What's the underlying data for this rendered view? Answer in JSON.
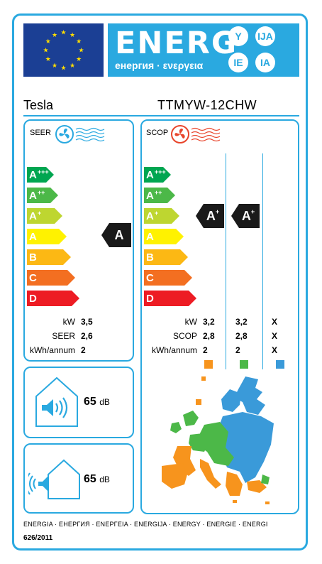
{
  "header": {
    "energy_word": "ENERG",
    "energy_sub": "енергия · ενεργεια",
    "lang_badges": [
      "Y",
      "IJA",
      "IE",
      "IA"
    ]
  },
  "product": {
    "brand": "Tesla",
    "model": "TTMYW-12CHW"
  },
  "scale": [
    {
      "grade": "A",
      "sup": "+++",
      "color": "#00a651"
    },
    {
      "grade": "A",
      "sup": "++",
      "color": "#4cb848"
    },
    {
      "grade": "A",
      "sup": "+",
      "color": "#bed630"
    },
    {
      "grade": "A",
      "sup": "",
      "color": "#fff200"
    },
    {
      "grade": "B",
      "sup": "",
      "color": "#fcb814"
    },
    {
      "grade": "C",
      "sup": "",
      "color": "#f36f21"
    },
    {
      "grade": "D",
      "sup": "",
      "color": "#ed1c24"
    }
  ],
  "cooling": {
    "label": "SEER",
    "class_grade": "A",
    "class_sup": "",
    "rows": [
      {
        "label": "kW",
        "value": "3,5"
      },
      {
        "label": "SEER",
        "value": "2,6"
      },
      {
        "label": "kWh/annum",
        "value": "2"
      }
    ]
  },
  "heating": {
    "label": "SCOP",
    "climates": [
      {
        "class_grade": "A",
        "class_sup": "+",
        "color": "#f7941d",
        "values": [
          "3,2",
          "2,8",
          "2"
        ]
      },
      {
        "class_grade": "A",
        "class_sup": "+",
        "color": "#4cb848",
        "values": [
          "3,2",
          "2,8",
          "2"
        ]
      },
      {
        "class_grade": "",
        "class_sup": "",
        "color": "#3a9ad9",
        "values": [
          "X",
          "X",
          "X"
        ]
      }
    ],
    "row_labels": [
      "kW",
      "SCOP",
      "kWh/annum"
    ]
  },
  "noise": {
    "indoor": {
      "value": "65",
      "unit": "dB"
    },
    "outdoor": {
      "value": "65",
      "unit": "dB"
    }
  },
  "footer": {
    "languages": "ENERGIA · ЕНЕРГИЯ · ΕΝΕΡΓΕΙΑ · ENERGIJA · ENERGY · ENERGIE · ENERGI",
    "regulation": "626/2011"
  },
  "colors": {
    "frame": "#2aa9e0",
    "eu_blue": "#1b3f94",
    "eu_star": "#ffdd00",
    "cool_icon": "#2aa9e0",
    "heat_icon": "#e8452c"
  }
}
